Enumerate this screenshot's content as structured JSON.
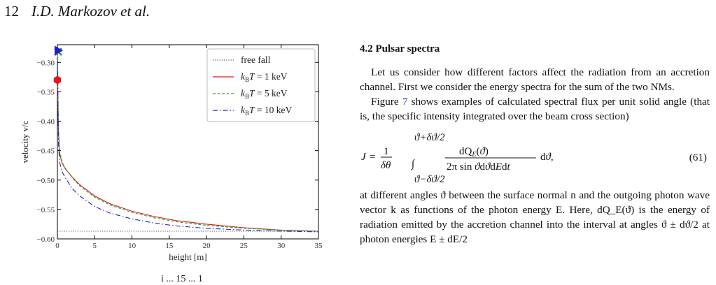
{
  "header": {
    "page_number": "12",
    "authors": "I.D. Markozov et al."
  },
  "figure": {
    "caption_fragment": "i  ...  15  ...  1"
  },
  "chart_data": {
    "type": "line",
    "xlabel": "height [m]",
    "ylabel": "velocity v/c",
    "xlim": [
      0,
      35
    ],
    "ylim": [
      -0.6,
      -0.27
    ],
    "x_ticks": [
      0,
      5,
      10,
      15,
      20,
      25,
      30,
      35
    ],
    "y_ticks": [
      -0.6,
      -0.55,
      -0.5,
      -0.45,
      -0.4,
      -0.35,
      -0.3
    ],
    "y_tick_labels": [
      "−0.60",
      "−0.55",
      "−0.50",
      "−0.45",
      "−0.40",
      "−0.35",
      "−0.30"
    ],
    "grid": false,
    "legend_position": "top-right",
    "series": [
      {
        "name": "free fall",
        "color": "#555555",
        "style": "dotted",
        "x": [
          0,
          5,
          10,
          15,
          20,
          25,
          30,
          35
        ],
        "y": [
          -0.587,
          -0.587,
          -0.587,
          -0.587,
          -0.587,
          -0.587,
          -0.587,
          -0.587
        ]
      },
      {
        "name": "k_BT = 1 keV",
        "color": "#e0191b",
        "style": "solid",
        "x": [
          0,
          0.15,
          0.3,
          0.6,
          1,
          2,
          3,
          5,
          7,
          10,
          13,
          16,
          20,
          25,
          30,
          35
        ],
        "y": [
          -0.33,
          -0.42,
          -0.455,
          -0.47,
          -0.48,
          -0.495,
          -0.508,
          -0.527,
          -0.54,
          -0.553,
          -0.562,
          -0.569,
          -0.575,
          -0.581,
          -0.585,
          -0.587
        ]
      },
      {
        "name": "k_BT = 5 keV",
        "color": "#2ca02c",
        "style": "dashed",
        "x": [
          0,
          0.15,
          0.3,
          0.6,
          1,
          2,
          3,
          5,
          7,
          10,
          13,
          16,
          20,
          25,
          30,
          35
        ],
        "y": [
          -0.28,
          -0.41,
          -0.452,
          -0.468,
          -0.479,
          -0.496,
          -0.51,
          -0.529,
          -0.542,
          -0.555,
          -0.564,
          -0.571,
          -0.577,
          -0.582,
          -0.585,
          -0.587
        ]
      },
      {
        "name": "k_BT = 10 keV",
        "color": "#2020c8",
        "style": "dashdot",
        "x": [
          0,
          0.15,
          0.3,
          0.6,
          1,
          2,
          3,
          5,
          7,
          10,
          13,
          16,
          20,
          25,
          30,
          35
        ],
        "y": [
          -0.28,
          -0.44,
          -0.47,
          -0.485,
          -0.495,
          -0.515,
          -0.527,
          -0.545,
          -0.556,
          -0.566,
          -0.573,
          -0.578,
          -0.582,
          -0.585,
          -0.587,
          -0.588
        ]
      }
    ],
    "markers": [
      {
        "shape": "hexagon",
        "color": "#e0191b",
        "x": 0,
        "y": -0.33
      },
      {
        "shape": "cross",
        "color": "#2ca02c",
        "x": 0.1,
        "y": -0.282
      },
      {
        "shape": "triangle-right",
        "color": "#2020c8",
        "x": 0,
        "y": -0.28
      }
    ]
  },
  "text": {
    "section_title": "4.2 Pulsar spectra",
    "para1": "Let us consider how different factors affect the radiation from an accretion channel. First we consider the energy spectra for the sum of the two NMs.",
    "para2_ref": "7",
    "para2_a": "Figure ",
    "para2_b": " shows examples of calculated spectral flux per unit solid angle (that is, the specific intensity integrated over the beam cross section)",
    "eq_number": "(61)",
    "para3": "at different angles ϑ between the surface normal n and the outgoing photon wave vector k as functions of the photon energy E. Here, dQ_E(ϑ) is the energy of radiation emitted by the accretion channel into the interval at angles ϑ ± dϑ/2 at photon energies E ± dE/2"
  }
}
